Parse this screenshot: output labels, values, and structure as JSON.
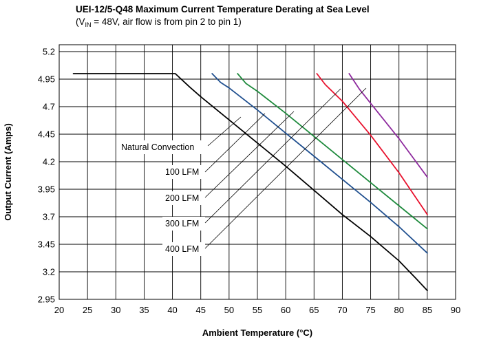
{
  "chart_data": {
    "type": "line",
    "title": "UEI-12/5-Q48 Maximum Current Temperature Derating at Sea Level",
    "subtitle": {
      "pre": "(V",
      "sub": "IN",
      "post": " = 48V, air flow is from pin 2 to pin 1)"
    },
    "xlabel": "Ambient Temperature (°C)",
    "ylabel": "Output Current (Amps)",
    "xlim": [
      20,
      90
    ],
    "ylim": [
      2.95,
      5.2
    ],
    "xticks": [
      "20",
      "25",
      "30",
      "35",
      "40",
      "45",
      "50",
      "55",
      "60",
      "65",
      "70",
      "75",
      "80",
      "85",
      "90"
    ],
    "yticks": [
      "5.2",
      "4.95",
      "4.7",
      "4.45",
      "4.2",
      "3.95",
      "3.7",
      "3.45",
      "3.2",
      "2.95"
    ],
    "grid": true,
    "series": [
      {
        "name": "Natural Convection",
        "color": "#000000",
        "points": [
          [
            22.5,
            5.0
          ],
          [
            40.5,
            5.0
          ],
          [
            43,
            4.88
          ],
          [
            45,
            4.79
          ],
          [
            50,
            4.58
          ],
          [
            55,
            4.37
          ],
          [
            60,
            4.16
          ],
          [
            65,
            3.94
          ],
          [
            70,
            3.72
          ],
          [
            75,
            3.52
          ],
          [
            80,
            3.3
          ],
          [
            83,
            3.14
          ],
          [
            85,
            3.03
          ]
        ]
      },
      {
        "name": "100 LFM",
        "color": "#1f4f8f",
        "points": [
          [
            47,
            5.0
          ],
          [
            48.5,
            4.92
          ],
          [
            50,
            4.87
          ],
          [
            55,
            4.67
          ],
          [
            60,
            4.46
          ],
          [
            65,
            4.25
          ],
          [
            70,
            4.04
          ],
          [
            75,
            3.83
          ],
          [
            80,
            3.61
          ],
          [
            85,
            3.37
          ]
        ]
      },
      {
        "name": "200 LFM",
        "color": "#1e8a3c",
        "points": [
          [
            51.5,
            5.0
          ],
          [
            53,
            4.91
          ],
          [
            55,
            4.84
          ],
          [
            60,
            4.64
          ],
          [
            65,
            4.43
          ],
          [
            70,
            4.22
          ],
          [
            75,
            4.01
          ],
          [
            80,
            3.8
          ],
          [
            85,
            3.59
          ]
        ]
      },
      {
        "name": "300 LFM",
        "color": "#e8102c",
        "points": [
          [
            65.5,
            5.0
          ],
          [
            67,
            4.9
          ],
          [
            70,
            4.75
          ],
          [
            75,
            4.44
          ],
          [
            80,
            4.1
          ],
          [
            85,
            3.72
          ]
        ]
      },
      {
        "name": "400 LFM",
        "color": "#8e2a9e",
        "points": [
          [
            71.2,
            5.0
          ],
          [
            73,
            4.86
          ],
          [
            75,
            4.73
          ],
          [
            80,
            4.41
          ],
          [
            85,
            4.06
          ]
        ]
      }
    ]
  }
}
